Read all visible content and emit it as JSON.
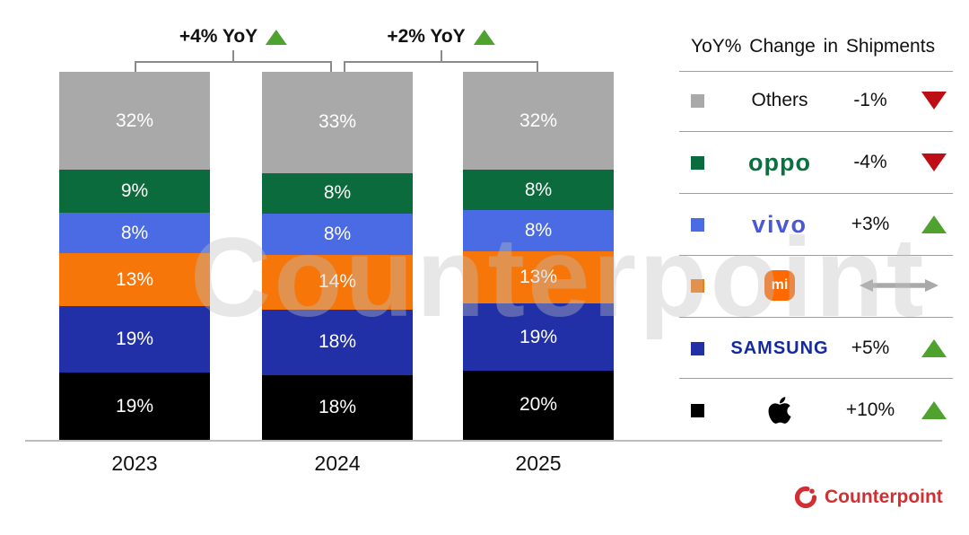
{
  "chart_data": {
    "type": "bar",
    "stacked": true,
    "unit": "%",
    "categories": [
      "2023",
      "2024",
      "2025"
    ],
    "series": [
      {
        "name": "Others",
        "color": "#a9a9a9",
        "values": [
          32,
          33,
          32
        ]
      },
      {
        "name": "OPPO",
        "color": "#0b6b3c",
        "values": [
          9,
          8,
          8
        ]
      },
      {
        "name": "vivo",
        "color": "#4a6be4",
        "values": [
          8,
          8,
          8
        ]
      },
      {
        "name": "Xiaomi",
        "color": "#f6760a",
        "values": [
          13,
          14,
          13
        ]
      },
      {
        "name": "Samsung",
        "color": "#2130a6",
        "values": [
          19,
          18,
          19
        ]
      },
      {
        "name": "Apple",
        "color": "#000000",
        "values": [
          19,
          18,
          20
        ]
      }
    ],
    "annotations": [
      {
        "text": "+4% YoY",
        "direction": "up",
        "from": "2023",
        "to": "2024"
      },
      {
        "text": "+2% YoY",
        "direction": "up",
        "from": "2024",
        "to": "2025"
      }
    ],
    "legend_position": "right",
    "grid": false,
    "xlabel": "",
    "ylabel": ""
  },
  "legend": {
    "title": "YoY% Change in Shipments",
    "rows": [
      {
        "label": "Others",
        "change": "-1%",
        "direction": "down",
        "color": "#a9a9a9"
      },
      {
        "label": "oppo",
        "change": "-4%",
        "direction": "down",
        "color": "#0b6b3c"
      },
      {
        "label": "vivo",
        "change": "+3%",
        "direction": "up",
        "color": "#4a6be4"
      },
      {
        "label": "mi",
        "change": "",
        "direction": "flat",
        "color": "#f6760a"
      },
      {
        "label": "SAMSUNG",
        "change": "+5%",
        "direction": "up",
        "color": "#2130a6"
      },
      {
        "label": "Apple",
        "change": "+10%",
        "direction": "up",
        "color": "#000000"
      }
    ]
  },
  "watermark": "Counterpoint",
  "footer": {
    "brand": "Counterpoint"
  },
  "colors": {
    "up_arrow": "#4fa22e",
    "down_arrow": "#bd0e15",
    "accent_red": "#d32f32",
    "axis": "#bdbdbd",
    "bracket": "#8a8a8a"
  }
}
